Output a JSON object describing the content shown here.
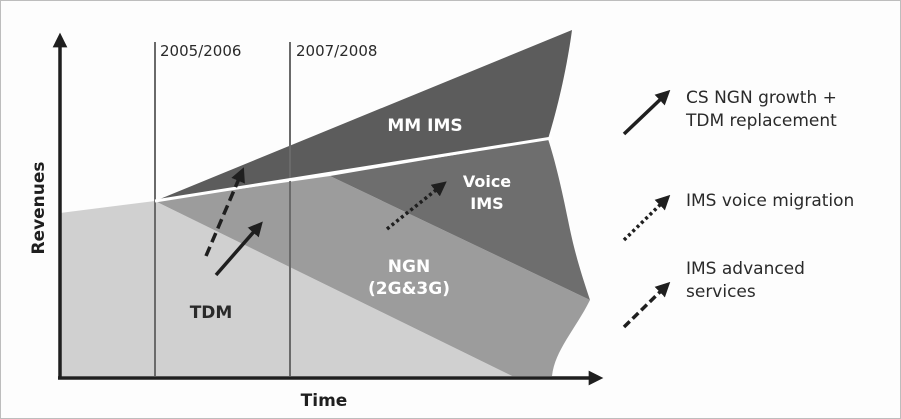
{
  "axes": {
    "x_label": "Time",
    "y_label": "Revenues"
  },
  "periods": [
    {
      "label": "2005/2006"
    },
    {
      "label": "2007/2008"
    }
  ],
  "bands": {
    "mm_ims": "MM IMS",
    "voice_ims_line1": "Voice",
    "voice_ims_line2": "IMS",
    "ngn_line1": "NGN",
    "ngn_line2": "(2G&3G)",
    "tdm": "TDM"
  },
  "legend": [
    {
      "style": "solid",
      "line1": "CS NGN growth +",
      "line2": "TDM replacement"
    },
    {
      "style": "dotted",
      "line1": "IMS voice migration",
      "line2": ""
    },
    {
      "style": "dashed",
      "line1": "IMS advanced",
      "line2": "services"
    }
  ],
  "colors": {
    "mm_ims": "#5c5c5c",
    "voice_ims": "#6e6e6e",
    "ngn": "#9c9c9c",
    "tdm": "#d0d0d0",
    "arrow": "#1f1f1f"
  }
}
